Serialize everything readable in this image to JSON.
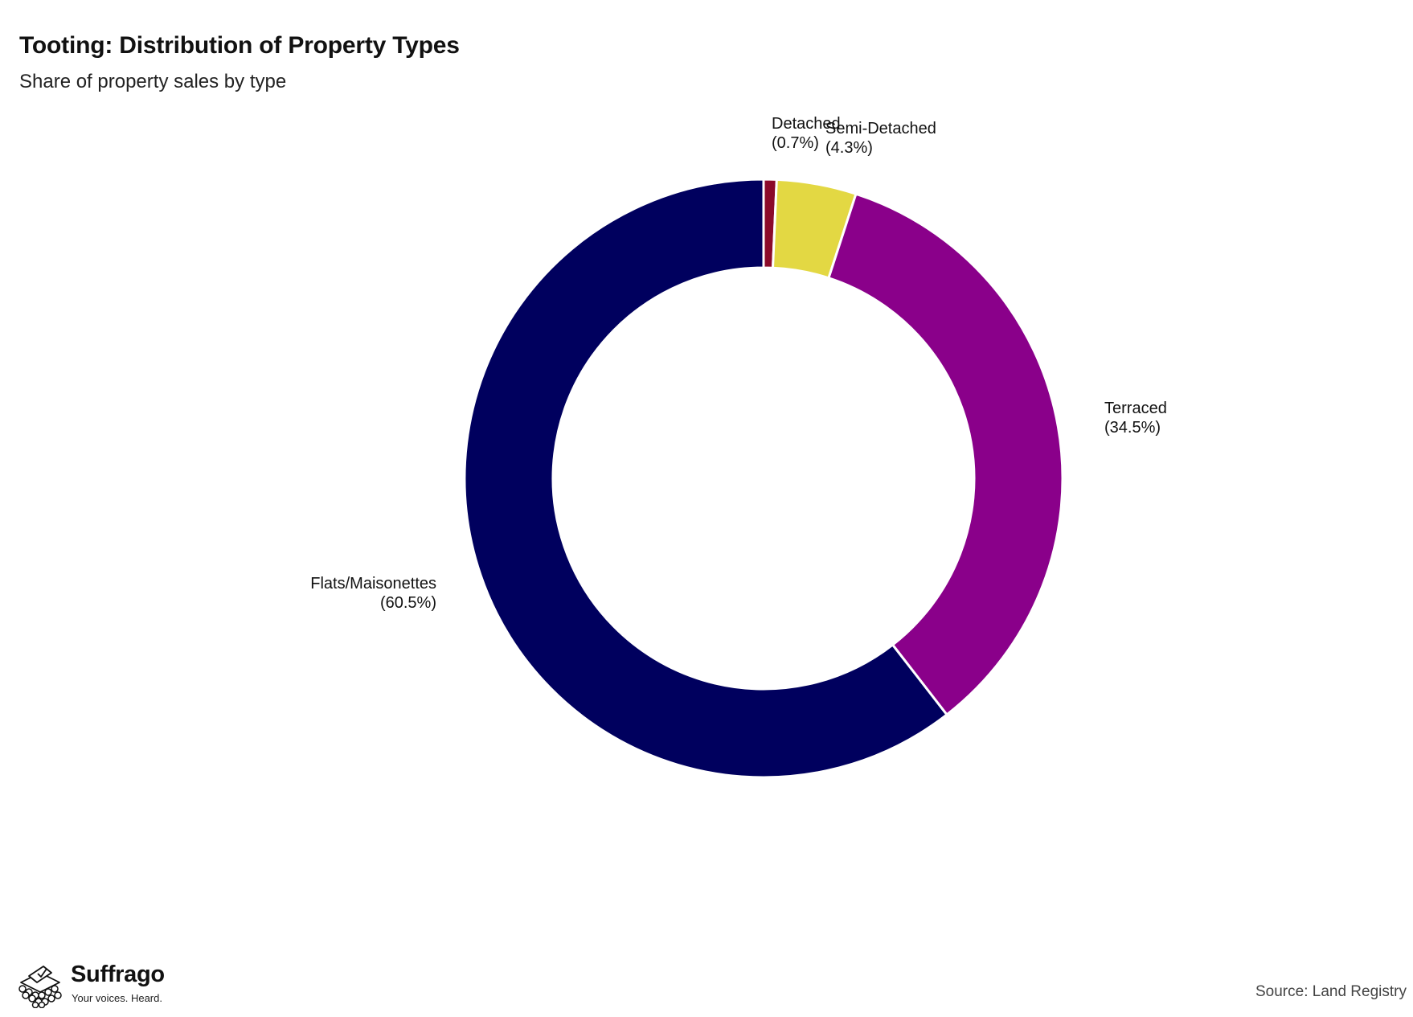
{
  "header": {
    "title": "Tooting: Distribution of Property Types",
    "subtitle": "Share of property sales by type"
  },
  "chart_data": {
    "type": "pie",
    "variant": "donut",
    "title": "Tooting: Distribution of Property Types",
    "subtitle": "Share of property sales by type",
    "slices": [
      {
        "label": "Detached",
        "percent_label": "(0.7%)",
        "value": 0.7,
        "color": "#8b0a2a"
      },
      {
        "label": "Semi-Detached",
        "percent_label": "(4.3%)",
        "value": 4.3,
        "color": "#e3d843"
      },
      {
        "label": "Terraced",
        "percent_label": "(34.5%)",
        "value": 34.5,
        "color": "#8a008a"
      },
      {
        "label": "Flats/Maisonettes",
        "percent_label": "(60.5%)",
        "value": 60.5,
        "color": "#00005e"
      }
    ],
    "start_angle": "12 o'clock",
    "direction": "clockwise",
    "legend": "none"
  },
  "footer": {
    "brand_name": "Suffrago",
    "brand_tagline": "Your voices. Heard.",
    "source": "Source: Land Registry"
  }
}
